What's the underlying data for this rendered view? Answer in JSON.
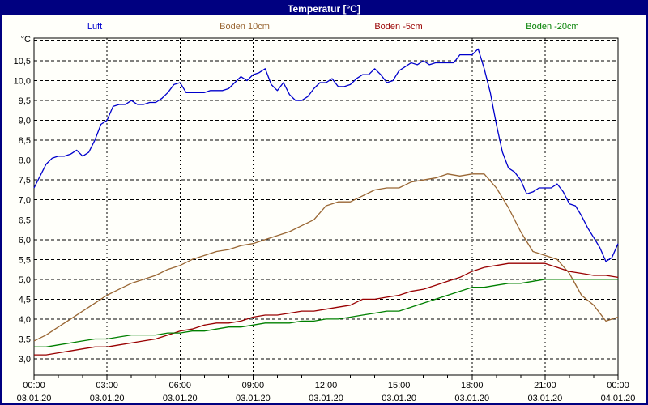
{
  "window": {
    "title": "Temperatur [°C]"
  },
  "colors": {
    "title_bar_bg": "#000080",
    "title_text": "#ffffff",
    "outer_border": "#000080",
    "plot_bg": "#fffffa",
    "grid": "#000000",
    "frame": "#000000"
  },
  "legend": {
    "items": [
      {
        "label": "Luft",
        "color": "#0000cc"
      },
      {
        "label": "Boden 10cm",
        "color": "#996633"
      },
      {
        "label": "Boden -5cm",
        "color": "#990000"
      },
      {
        "label": "Boden -20cm",
        "color": "#008000"
      }
    ]
  },
  "chart_data": {
    "type": "line",
    "title": "Temperatur [°C]",
    "y_unit": "°C",
    "ylabel": "",
    "xlabel": "",
    "grid": "dashed",
    "legend_position": "top",
    "ylim": [
      2.6,
      11.1
    ],
    "y_gridlines": {
      "from": 3.0,
      "to": 11.0,
      "step": 0.5
    },
    "y_ticks": [
      {
        "value": 10.5,
        "label": "10,5"
      },
      {
        "value": 10.0,
        "label": "10,0"
      },
      {
        "value": 9.5,
        "label": "9,5"
      },
      {
        "value": 9.0,
        "label": "9,0"
      },
      {
        "value": 8.5,
        "label": "8,5"
      },
      {
        "value": 8.0,
        "label": "8,0"
      },
      {
        "value": 7.5,
        "label": "7,5"
      },
      {
        "value": 7.0,
        "label": "7,0"
      },
      {
        "value": 6.5,
        "label": "6,5"
      },
      {
        "value": 6.0,
        "label": "6,0"
      },
      {
        "value": 5.5,
        "label": "5,5"
      },
      {
        "value": 5.0,
        "label": "5,0"
      },
      {
        "value": 4.5,
        "label": "4,5"
      },
      {
        "value": 4.0,
        "label": "4,0"
      },
      {
        "value": 3.5,
        "label": "3,5"
      },
      {
        "value": 3.0,
        "label": "3,0"
      }
    ],
    "x_range_hours": [
      0,
      24
    ],
    "x_minor_tick_every_hours": 1,
    "x_ticks": [
      {
        "hour": 0,
        "time": "00:00",
        "date": "03.01.20"
      },
      {
        "hour": 3,
        "time": "03:00",
        "date": "03.01.20"
      },
      {
        "hour": 6,
        "time": "06:00",
        "date": "03.01.20"
      },
      {
        "hour": 9,
        "time": "09:00",
        "date": "03.01.20"
      },
      {
        "hour": 12,
        "time": "12:00",
        "date": "03.01.20"
      },
      {
        "hour": 15,
        "time": "15:00",
        "date": "03.01.20"
      },
      {
        "hour": 18,
        "time": "18:00",
        "date": "03.01.20"
      },
      {
        "hour": 21,
        "time": "21:00",
        "date": "03.01.20"
      },
      {
        "hour": 24,
        "time": "00:00",
        "date": "04.01.20"
      }
    ],
    "series": [
      {
        "name": "Luft",
        "color": "#0000cc",
        "start_hour": 0,
        "step_hours": 0.25,
        "values": [
          7.3,
          7.6,
          7.9,
          8.05,
          8.1,
          8.1,
          8.15,
          8.25,
          8.1,
          8.2,
          8.5,
          8.9,
          9.0,
          9.35,
          9.4,
          9.4,
          9.5,
          9.4,
          9.4,
          9.45,
          9.45,
          9.55,
          9.7,
          9.9,
          9.95,
          9.7,
          9.7,
          9.7,
          9.7,
          9.75,
          9.75,
          9.75,
          9.8,
          9.95,
          10.1,
          10.0,
          10.15,
          10.2,
          10.3,
          9.9,
          9.75,
          9.95,
          9.65,
          9.5,
          9.5,
          9.6,
          9.8,
          9.95,
          9.95,
          10.05,
          9.85,
          9.85,
          9.9,
          10.05,
          10.15,
          10.15,
          10.3,
          10.15,
          9.95,
          10.0,
          10.25,
          10.35,
          10.45,
          10.4,
          10.5,
          10.4,
          10.45,
          10.45,
          10.45,
          10.45,
          10.65,
          10.65,
          10.65,
          10.8,
          10.3,
          9.7,
          8.9,
          8.2,
          7.8,
          7.7,
          7.5,
          7.15,
          7.2,
          7.3,
          7.3,
          7.3,
          7.4,
          7.2,
          6.9,
          6.85,
          6.6,
          6.3,
          6.05,
          5.8,
          5.45,
          5.55,
          5.9
        ]
      },
      {
        "name": "Boden 10cm",
        "color": "#996633",
        "start_hour": 0,
        "step_hours": 0.5,
        "values": [
          3.45,
          3.6,
          3.8,
          4.0,
          4.2,
          4.4,
          4.6,
          4.75,
          4.9,
          5.0,
          5.1,
          5.25,
          5.35,
          5.5,
          5.6,
          5.7,
          5.75,
          5.85,
          5.9,
          6.0,
          6.1,
          6.2,
          6.35,
          6.5,
          6.85,
          6.95,
          6.95,
          7.1,
          7.25,
          7.3,
          7.3,
          7.45,
          7.5,
          7.55,
          7.65,
          7.6,
          7.65,
          7.65,
          7.3,
          6.8,
          6.2,
          5.7,
          5.6,
          5.5,
          5.15,
          4.6,
          4.35,
          3.95,
          4.05
        ]
      },
      {
        "name": "Boden -5cm",
        "color": "#990000",
        "start_hour": 0,
        "step_hours": 0.5,
        "values": [
          3.1,
          3.1,
          3.15,
          3.2,
          3.25,
          3.3,
          3.3,
          3.35,
          3.4,
          3.45,
          3.5,
          3.6,
          3.7,
          3.75,
          3.85,
          3.9,
          3.9,
          3.95,
          4.05,
          4.1,
          4.1,
          4.15,
          4.2,
          4.2,
          4.25,
          4.3,
          4.35,
          4.5,
          4.5,
          4.55,
          4.6,
          4.7,
          4.75,
          4.85,
          4.95,
          5.05,
          5.2,
          5.3,
          5.35,
          5.4,
          5.4,
          5.4,
          5.4,
          5.3,
          5.2,
          5.15,
          5.1,
          5.1,
          5.05
        ]
      },
      {
        "name": "Boden -20cm",
        "color": "#008000",
        "start_hour": 0,
        "step_hours": 0.5,
        "values": [
          3.3,
          3.3,
          3.35,
          3.4,
          3.45,
          3.5,
          3.5,
          3.55,
          3.6,
          3.6,
          3.6,
          3.65,
          3.65,
          3.7,
          3.7,
          3.75,
          3.8,
          3.8,
          3.85,
          3.9,
          3.9,
          3.9,
          3.95,
          3.95,
          4.0,
          4.0,
          4.05,
          4.1,
          4.15,
          4.2,
          4.2,
          4.3,
          4.4,
          4.5,
          4.6,
          4.7,
          4.8,
          4.8,
          4.85,
          4.9,
          4.9,
          4.95,
          5.0,
          5.0,
          5.0,
          5.0,
          5.0,
          5.0,
          5.0
        ]
      }
    ]
  }
}
